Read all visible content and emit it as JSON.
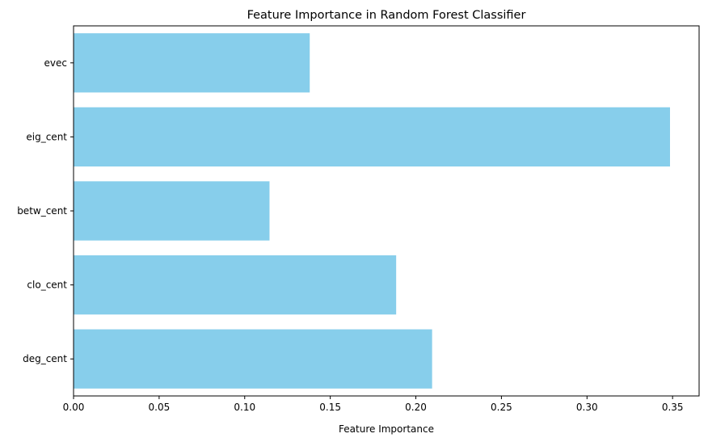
{
  "chart_data": {
    "type": "bar",
    "orientation": "horizontal",
    "title": "Feature Importance in Random Forest Classifier",
    "xlabel": "Feature Importance",
    "ylabel": "",
    "categories": [
      "deg_cent",
      "clo_cent",
      "betw_cent",
      "eig_cent",
      "evec"
    ],
    "values": [
      0.2095,
      0.1885,
      0.1145,
      0.3485,
      0.138
    ],
    "xlim": [
      0,
      0.3655
    ],
    "xticks": [
      "0.00",
      "0.05",
      "0.10",
      "0.15",
      "0.20",
      "0.25",
      "0.30",
      "0.35"
    ],
    "bar_color": "#87ceeb",
    "grid": false,
    "legend": "none"
  }
}
